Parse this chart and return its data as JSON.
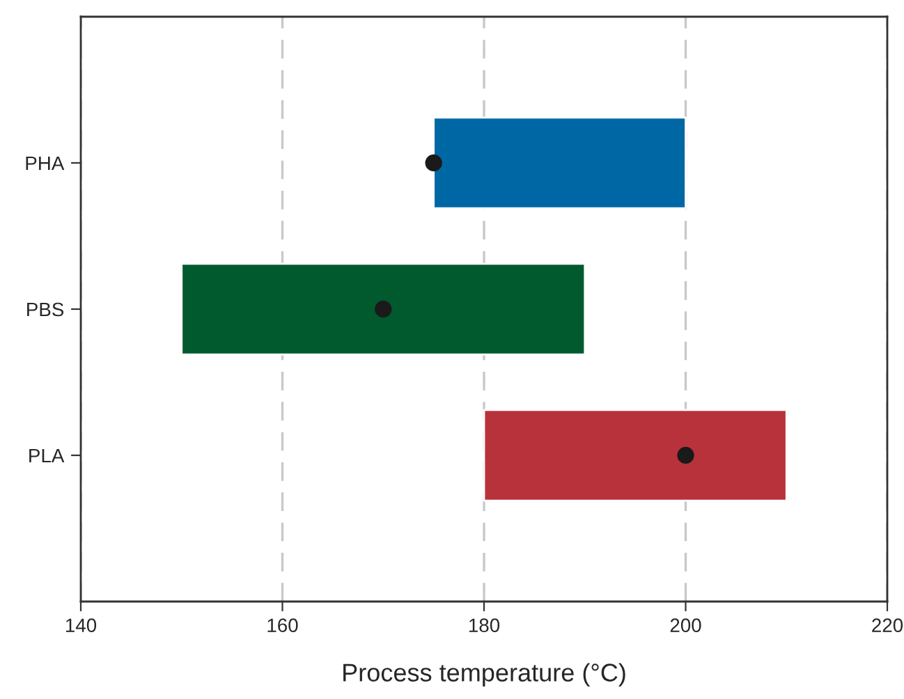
{
  "chart_data": {
    "type": "bar",
    "orientation": "horizontal",
    "xlabel": "Process temperature (°C)",
    "categories": [
      "PHA",
      "PBS",
      "PLA"
    ],
    "series": [
      {
        "values": [
          25,
          40,
          30
        ],
        "base": [
          175,
          150,
          180
        ],
        "colors": [
          "#0067a5",
          "#005a2e",
          "#b8323c"
        ]
      },
      {
        "type": "scatter",
        "x": [
          "PHA",
          "PBS",
          "PLA"
        ],
        "values": [
          175,
          170,
          200
        ],
        "color": "#1a1a1a",
        "marker": "circle"
      }
    ],
    "xlim": [
      140,
      220
    ],
    "xticks": [
      140,
      160,
      180,
      200,
      220
    ],
    "grid": "x",
    "line_style": "dashed"
  }
}
